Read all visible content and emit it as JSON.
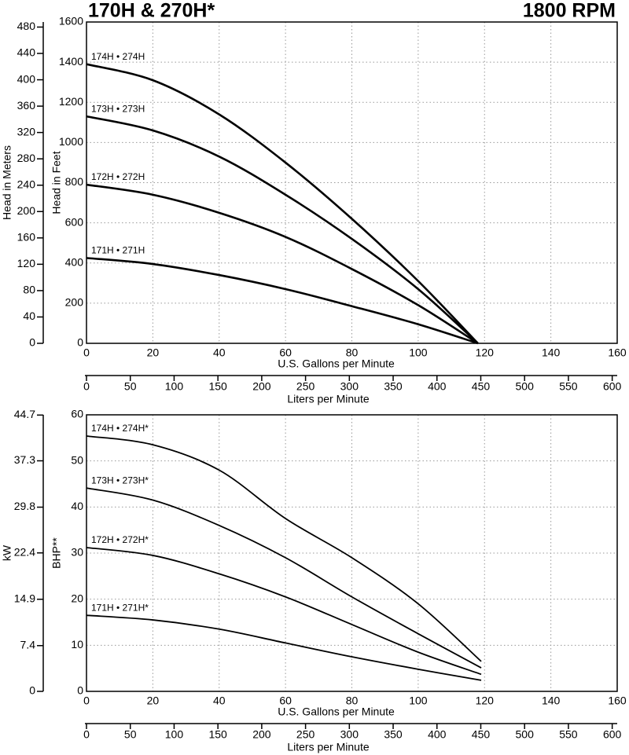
{
  "chart_data": [
    {
      "type": "line",
      "title": "170H & 270H*",
      "subtitle": "1800 RPM",
      "xlabel": "U.S. Gallons per Minute",
      "ylabel": "Head in Feet",
      "y2label": "Head in Meters",
      "x2label": "Liters per Minute",
      "x": [
        0,
        20,
        40,
        60,
        80,
        100,
        118
      ],
      "xlim": [
        0,
        160
      ],
      "xticks": [
        0,
        20,
        40,
        60,
        80,
        100,
        120,
        140,
        160
      ],
      "ylim": [
        0,
        1600
      ],
      "yticks": [
        0,
        200,
        400,
        600,
        800,
        1000,
        1200,
        1400,
        1600
      ],
      "y2lim": [
        0,
        487.7
      ],
      "y2ticks": [
        0,
        40,
        80,
        120,
        160,
        200,
        240,
        280,
        320,
        360,
        400,
        440,
        480
      ],
      "x2lim": [
        0,
        605.7
      ],
      "x2ticks": [
        0,
        50,
        100,
        150,
        200,
        250,
        300,
        350,
        400,
        450,
        500,
        550,
        600
      ],
      "grid": true,
      "series": [
        {
          "name": "174H • 274H",
          "color": "#000000",
          "values": [
            1390,
            1310,
            1140,
            900,
            620,
            310,
            0
          ]
        },
        {
          "name": "173H • 273H",
          "color": "#000000",
          "values": [
            1130,
            1060,
            930,
            740,
            520,
            270,
            0
          ]
        },
        {
          "name": "172H • 272H",
          "color": "#000000",
          "values": [
            790,
            740,
            650,
            530,
            370,
            190,
            0
          ]
        },
        {
          "name": "171H • 271H",
          "color": "#000000",
          "values": [
            425,
            395,
            340,
            270,
            185,
            95,
            0
          ]
        }
      ]
    },
    {
      "type": "line",
      "xlabel": "U.S. Gallons per Minute",
      "ylabel": "BHP**",
      "y2label": "kW",
      "x2label": "Liters per Minute",
      "x": [
        0,
        20,
        40,
        60,
        80,
        100,
        119
      ],
      "xlim": [
        0,
        160
      ],
      "xticks": [
        0,
        20,
        40,
        60,
        80,
        100,
        120,
        140,
        160
      ],
      "ylim": [
        0,
        60
      ],
      "yticks": [
        0,
        10,
        20,
        30,
        40,
        50,
        60
      ],
      "y2lim": [
        0,
        44.74
      ],
      "y2ticks": [
        0,
        7.4,
        14.9,
        22.4,
        29.8,
        37.3,
        44.7
      ],
      "x2lim": [
        0,
        605.7
      ],
      "x2ticks": [
        0,
        50,
        100,
        150,
        200,
        250,
        300,
        350,
        400,
        450,
        500,
        550,
        600
      ],
      "grid": true,
      "series": [
        {
          "name": "174H • 274H*",
          "color": "#000000",
          "values": [
            55.4,
            53.5,
            48,
            37.5,
            29,
            19,
            6.5
          ]
        },
        {
          "name": "173H • 273H*",
          "color": "#000000",
          "values": [
            44.1,
            41.5,
            36,
            29,
            20.5,
            12.5,
            5.1
          ]
        },
        {
          "name": "172H • 272H*",
          "color": "#000000",
          "values": [
            31.2,
            29.5,
            25.5,
            20.5,
            14.5,
            8.5,
            3.7
          ]
        },
        {
          "name": "171H • 271H*",
          "color": "#000000",
          "values": [
            16.5,
            15.5,
            13.5,
            10.5,
            7.5,
            4.8,
            2.4
          ]
        }
      ]
    }
  ]
}
